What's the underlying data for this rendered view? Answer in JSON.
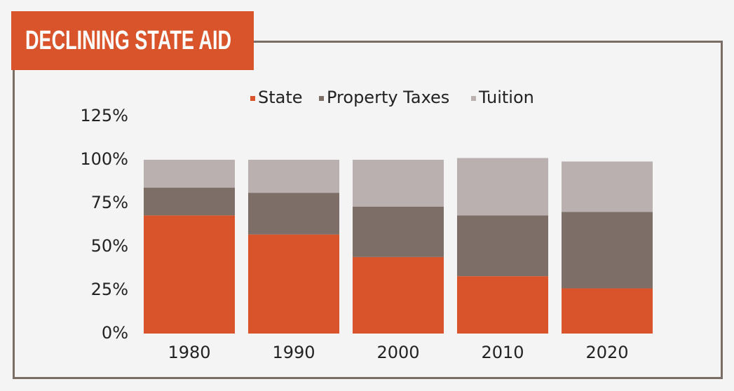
{
  "chart_data": {
    "type": "stacked_bar",
    "title": "DECLINING STATE AID",
    "categories": [
      "1980",
      "1990",
      "2000",
      "2010",
      "2020"
    ],
    "series": [
      {
        "name": "State",
        "color": "#d9542b",
        "values": [
          68,
          57,
          44,
          33,
          26
        ]
      },
      {
        "name": "Property Taxes",
        "color": "#7d6f67",
        "values": [
          16,
          24,
          29,
          35,
          44
        ]
      },
      {
        "name": "Tuition",
        "color": "#bab0b0",
        "values": [
          16,
          19,
          27,
          33,
          29
        ]
      }
    ],
    "ylim": [
      0,
      125
    ],
    "yticks": [
      {
        "value": 0,
        "label": "0%"
      },
      {
        "value": 25,
        "label": "25%"
      },
      {
        "value": 50,
        "label": "50%"
      },
      {
        "value": 75,
        "label": "75%"
      },
      {
        "value": 100,
        "label": "100%"
      },
      {
        "value": 125,
        "label": "125%"
      }
    ],
    "grid": false,
    "legend": "top"
  }
}
